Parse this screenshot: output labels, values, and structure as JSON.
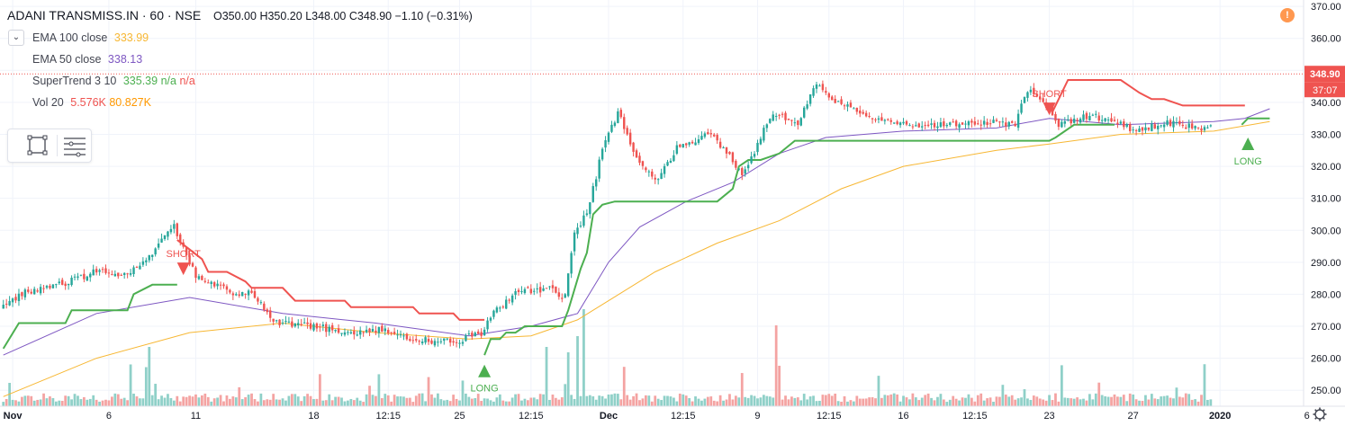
{
  "header": {
    "symbol": "ADANI TRANSMISS.IN · 60 · NSE",
    "open": "O350.00",
    "high": "H350.20",
    "low": "L348.00",
    "close": "C348.90",
    "change": "−1.10 (−0.31%)"
  },
  "indicators": [
    {
      "label": "EMA 100 close",
      "value": "333.99",
      "color": "#f7b733"
    },
    {
      "label": "EMA 50 close",
      "value": "338.13",
      "color": "#7e57c2"
    },
    {
      "label": "SuperTrend 3 10",
      "value": "335.39",
      "extra1": "n/a",
      "extra2": "n/a",
      "color": "#4caf50",
      "color2": "#ef5350"
    },
    {
      "label": "Vol 20",
      "value": "5.576K",
      "extra1": "80.827K",
      "color": "#ef5350",
      "color2": "#ff9800"
    }
  ],
  "price_scale": {
    "ticks": [
      "370.00",
      "360.00",
      "350.00",
      "340.00",
      "330.00",
      "320.00",
      "310.00",
      "300.00",
      "290.00",
      "280.00",
      "270.00",
      "260.00",
      "250.00"
    ],
    "last_price": "348.90",
    "countdown": "37:07"
  },
  "colors": {
    "up": "#26a69a",
    "down": "#ef5350",
    "ema100": "#f7b733",
    "ema50": "#7e57c2",
    "st_long": "#4caf50",
    "st_short": "#ef5350",
    "vol_up": "#8fd0c8",
    "vol_down": "#f4a3a2"
  },
  "chart_data": {
    "type": "candlestick",
    "y_range": [
      245,
      372
    ],
    "bar_count": 390,
    "x_ticks": [
      {
        "label": "Nov",
        "bar": 3
      },
      {
        "label": "6",
        "bar": 34
      },
      {
        "label": "11",
        "bar": 62
      },
      {
        "label": "18",
        "bar": 100
      },
      {
        "label": "12:15",
        "bar": 124
      },
      {
        "label": "25",
        "bar": 147
      },
      {
        "label": "12:15",
        "bar": 170
      },
      {
        "label": "Dec",
        "bar": 195
      },
      {
        "label": "12:15",
        "bar": 219
      },
      {
        "label": "9",
        "bar": 243
      },
      {
        "label": "12:15",
        "bar": 266
      },
      {
        "label": "16",
        "bar": 290
      },
      {
        "label": "12:15",
        "bar": 313
      },
      {
        "label": "23",
        "bar": 337
      },
      {
        "label": "27",
        "bar": 364
      },
      {
        "label": "2020",
        "bar": 392
      },
      {
        "label": "6",
        "bar": 420
      }
    ],
    "price_path": [
      [
        0,
        276
      ],
      [
        8,
        281
      ],
      [
        18,
        283
      ],
      [
        30,
        287
      ],
      [
        40,
        286
      ],
      [
        48,
        293
      ],
      [
        55,
        301
      ],
      [
        62,
        286
      ],
      [
        72,
        281
      ],
      [
        80,
        280
      ],
      [
        88,
        271
      ],
      [
        100,
        270
      ],
      [
        112,
        268
      ],
      [
        122,
        269
      ],
      [
        132,
        266
      ],
      [
        145,
        265
      ],
      [
        154,
        268
      ],
      [
        158,
        274
      ],
      [
        165,
        280
      ],
      [
        175,
        282
      ],
      [
        181,
        279
      ],
      [
        184,
        300
      ],
      [
        188,
        305
      ],
      [
        193,
        325
      ],
      [
        198,
        337
      ],
      [
        203,
        325
      ],
      [
        210,
        315
      ],
      [
        218,
        327
      ],
      [
        228,
        330
      ],
      [
        238,
        318
      ],
      [
        242,
        325
      ],
      [
        248,
        337
      ],
      [
        256,
        333
      ],
      [
        262,
        346
      ],
      [
        268,
        340
      ],
      [
        275,
        337
      ],
      [
        283,
        334
      ],
      [
        295,
        332
      ],
      [
        315,
        334
      ],
      [
        326,
        333
      ],
      [
        330,
        344
      ],
      [
        337,
        338
      ],
      [
        340,
        333
      ],
      [
        350,
        336
      ],
      [
        360,
        333
      ],
      [
        366,
        331
      ],
      [
        374,
        334
      ],
      [
        384,
        332
      ],
      [
        392,
        332
      ],
      [
        396,
        333
      ],
      [
        399,
        352
      ],
      [
        404,
        349
      ],
      [
        408,
        349
      ]
    ],
    "ema50_path": [
      [
        0,
        261
      ],
      [
        30,
        274
      ],
      [
        60,
        279
      ],
      [
        90,
        274
      ],
      [
        120,
        271
      ],
      [
        150,
        267
      ],
      [
        170,
        270
      ],
      [
        185,
        274
      ],
      [
        195,
        290
      ],
      [
        205,
        301
      ],
      [
        220,
        309
      ],
      [
        235,
        315
      ],
      [
        250,
        324
      ],
      [
        265,
        329
      ],
      [
        290,
        331
      ],
      [
        320,
        332
      ],
      [
        337,
        335
      ],
      [
        360,
        333
      ],
      [
        390,
        334
      ],
      [
        400,
        335
      ],
      [
        408,
        338
      ]
    ],
    "ema100_path": [
      [
        0,
        248
      ],
      [
        30,
        260
      ],
      [
        60,
        268
      ],
      [
        90,
        271
      ],
      [
        120,
        268
      ],
      [
        150,
        266
      ],
      [
        170,
        267
      ],
      [
        185,
        272
      ],
      [
        195,
        278
      ],
      [
        210,
        287
      ],
      [
        230,
        296
      ],
      [
        250,
        303
      ],
      [
        270,
        313
      ],
      [
        290,
        320
      ],
      [
        320,
        325
      ],
      [
        337,
        327
      ],
      [
        360,
        330
      ],
      [
        390,
        331
      ],
      [
        408,
        334
      ]
    ],
    "supertrend": [
      {
        "dir": "long",
        "points": [
          [
            0,
            263
          ],
          [
            5,
            271
          ],
          [
            20,
            271
          ],
          [
            22,
            275
          ],
          [
            40,
            275
          ],
          [
            42,
            280
          ],
          [
            48,
            283
          ],
          [
            56,
            283
          ]
        ]
      },
      {
        "dir": "short",
        "points": [
          [
            56,
            297
          ],
          [
            60,
            294
          ],
          [
            64,
            291
          ],
          [
            66,
            287
          ],
          [
            72,
            287
          ],
          [
            78,
            284
          ],
          [
            80,
            282
          ],
          [
            90,
            282
          ],
          [
            94,
            278
          ],
          [
            110,
            278
          ],
          [
            112,
            276
          ],
          [
            132,
            276
          ],
          [
            134,
            274
          ],
          [
            145,
            274
          ],
          [
            147,
            272
          ],
          [
            155,
            272
          ]
        ]
      },
      {
        "dir": "long",
        "points": [
          [
            155,
            261
          ],
          [
            157,
            266
          ],
          [
            160,
            266
          ],
          [
            162,
            268
          ],
          [
            165,
            268
          ],
          [
            168,
            270
          ],
          [
            180,
            270
          ],
          [
            182,
            275
          ],
          [
            186,
            288
          ],
          [
            188,
            293
          ],
          [
            190,
            305
          ],
          [
            193,
            308
          ],
          [
            197,
            309
          ],
          [
            230,
            309
          ],
          [
            235,
            313
          ],
          [
            237,
            320
          ],
          [
            240,
            322
          ],
          [
            244,
            322
          ],
          [
            250,
            324
          ],
          [
            255,
            328
          ],
          [
            337,
            328
          ],
          [
            339,
            329
          ],
          [
            345,
            333
          ],
          [
            358,
            333
          ]
        ]
      },
      {
        "dir": "short",
        "points": [
          [
            338,
            337
          ],
          [
            341,
            343
          ],
          [
            343,
            347
          ],
          [
            360,
            347
          ],
          [
            366,
            343
          ],
          [
            370,
            341
          ],
          [
            374,
            341
          ],
          [
            380,
            339
          ],
          [
            400,
            339
          ]
        ]
      },
      {
        "dir": "long",
        "points": [
          [
            399,
            333
          ],
          [
            401,
            335
          ],
          [
            408,
            335
          ]
        ]
      }
    ],
    "signals": [
      {
        "type": "SHORT",
        "bar": 58,
        "price": 286
      },
      {
        "type": "LONG",
        "bar": 155,
        "price": 258
      },
      {
        "type": "SHORT",
        "bar": 337,
        "price": 336
      },
      {
        "type": "LONG",
        "bar": 401,
        "price": 329
      }
    ],
    "volume_spikes": [
      {
        "bar": 47,
        "rel": 0.55,
        "dir": "up"
      },
      {
        "bar": 175,
        "rel": 0.55,
        "dir": "up"
      },
      {
        "bar": 182,
        "rel": 0.5,
        "dir": "up"
      },
      {
        "bar": 185,
        "rel": 0.65,
        "dir": "up"
      },
      {
        "bar": 187,
        "rel": 0.9,
        "dir": "up"
      },
      {
        "bar": 249,
        "rel": 0.75,
        "dir": "down"
      },
      {
        "bar": 399,
        "rel": 0.95,
        "dir": "up"
      }
    ]
  }
}
